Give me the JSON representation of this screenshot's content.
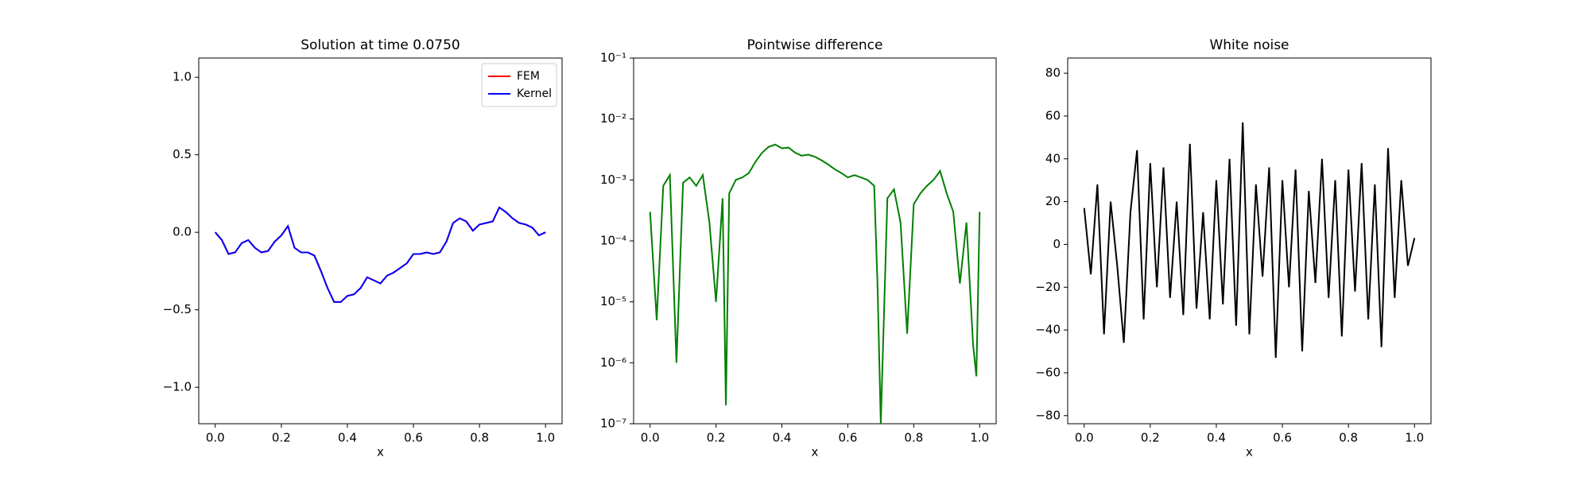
{
  "chart_data": [
    {
      "type": "line",
      "title": "Solution at time 0.0750",
      "xlabel": "x",
      "x": [
        0,
        0.02,
        0.04,
        0.06,
        0.08,
        0.1,
        0.12,
        0.14,
        0.16,
        0.18,
        0.2,
        0.22,
        0.24,
        0.26,
        0.28,
        0.3,
        0.32,
        0.34,
        0.36,
        0.38,
        0.4,
        0.42,
        0.44,
        0.46,
        0.48,
        0.5,
        0.52,
        0.54,
        0.56,
        0.58,
        0.6,
        0.62,
        0.64,
        0.66,
        0.68,
        0.7,
        0.72,
        0.74,
        0.76,
        0.78,
        0.8,
        0.82,
        0.84,
        0.86,
        0.88,
        0.9,
        0.92,
        0.94,
        0.96,
        0.98,
        1
      ],
      "series": [
        {
          "name": "FEM",
          "color": "#ff0000",
          "values": [
            0,
            -0.05,
            -0.14,
            -0.13,
            -0.07,
            -0.05,
            -0.1,
            -0.13,
            -0.12,
            -0.06,
            -0.02,
            0.04,
            -0.1,
            -0.13,
            -0.13,
            -0.15,
            -0.25,
            -0.36,
            -0.45,
            -0.45,
            -0.41,
            -0.4,
            -0.36,
            -0.29,
            -0.31,
            -0.33,
            -0.28,
            -0.26,
            -0.23,
            -0.2,
            -0.14,
            -0.14,
            -0.13,
            -0.14,
            -0.13,
            -0.06,
            0.06,
            0.09,
            0.07,
            0.01,
            0.05,
            0.06,
            0.07,
            0.16,
            0.13,
            0.09,
            0.06,
            0.05,
            0.03,
            -0.02,
            0
          ]
        },
        {
          "name": "Kernel",
          "color": "#0000ff",
          "values": [
            0,
            -0.05,
            -0.14,
            -0.13,
            -0.07,
            -0.05,
            -0.1,
            -0.13,
            -0.12,
            -0.06,
            -0.02,
            0.04,
            -0.1,
            -0.13,
            -0.13,
            -0.15,
            -0.25,
            -0.36,
            -0.45,
            -0.45,
            -0.41,
            -0.4,
            -0.36,
            -0.29,
            -0.31,
            -0.33,
            -0.28,
            -0.26,
            -0.23,
            -0.2,
            -0.14,
            -0.14,
            -0.13,
            -0.14,
            -0.13,
            -0.06,
            0.06,
            0.09,
            0.07,
            0.01,
            0.05,
            0.06,
            0.07,
            0.16,
            0.13,
            0.09,
            0.06,
            0.05,
            0.03,
            -0.02,
            0
          ]
        }
      ],
      "xlim": [
        -0.05,
        1.05
      ],
      "xticks": [
        {
          "value": 0,
          "label": "0.0"
        },
        0.2,
        0.4,
        0.6,
        0.8,
        {
          "value": 1,
          "label": "1.0"
        }
      ],
      "ylim": [
        -1.235,
        1.124
      ],
      "yticks": [
        {
          "value": -1,
          "label": "−1.0"
        },
        {
          "value": -0.5,
          "label": "−0.5"
        },
        {
          "value": 0,
          "label": "0.0"
        },
        0.5,
        {
          "value": 1,
          "label": "1.0"
        }
      ],
      "legend": "upper right",
      "grid": false
    },
    {
      "type": "line",
      "title": "Pointwise difference",
      "xlabel": "x",
      "x": [
        0,
        0.02,
        0.04,
        0.06,
        0.08,
        0.1,
        0.12,
        0.14,
        0.16,
        0.18,
        0.2,
        0.22,
        0.23,
        0.24,
        0.26,
        0.28,
        0.3,
        0.32,
        0.34,
        0.36,
        0.38,
        0.4,
        0.42,
        0.44,
        0.46,
        0.48,
        0.5,
        0.52,
        0.54,
        0.56,
        0.58,
        0.6,
        0.62,
        0.64,
        0.66,
        0.68,
        0.69,
        0.7,
        0.72,
        0.74,
        0.76,
        0.78,
        0.8,
        0.82,
        0.84,
        0.86,
        0.88,
        0.9,
        0.92,
        0.94,
        0.96,
        0.98,
        0.99,
        1
      ],
      "series": [
        {
          "color": "#008000",
          "values": [
            0.0003,
            5e-06,
            0.0008,
            0.0012,
            1e-06,
            0.0009,
            0.0011,
            0.0008,
            0.0012,
            0.0002,
            1e-05,
            0.0005,
            2e-07,
            0.0006,
            0.001,
            0.0011,
            0.0013,
            0.002,
            0.0028,
            0.0035,
            0.0038,
            0.0033,
            0.0034,
            0.0028,
            0.0025,
            0.0026,
            0.0024,
            0.0021,
            0.0018,
            0.0015,
            0.0013,
            0.0011,
            0.0012,
            0.0011,
            0.001,
            0.0008,
            2e-05,
            1e-07,
            0.0005,
            0.0007,
            0.0002,
            3e-06,
            0.0004,
            0.0006,
            0.0008,
            0.001,
            0.0014,
            0.0006,
            0.0003,
            2e-05,
            0.0002,
            2e-06,
            6e-07,
            0.0003
          ]
        }
      ],
      "xlim": [
        -0.05,
        1.05
      ],
      "xticks": [
        {
          "value": 0,
          "label": "0.0"
        },
        0.2,
        0.4,
        0.6,
        0.8,
        {
          "value": 1,
          "label": "1.0"
        }
      ],
      "ylim": [
        1e-07,
        0.1
      ],
      "log_y": true,
      "yticks": [
        {
          "value": 1e-07,
          "label": "10⁻⁷"
        },
        {
          "value": 1e-06,
          "label": "10⁻⁶"
        },
        {
          "value": 1e-05,
          "label": "10⁻⁵"
        },
        {
          "value": 0.0001,
          "label": "10⁻⁴"
        },
        {
          "value": 0.001,
          "label": "10⁻³"
        },
        {
          "value": 0.01,
          "label": "10⁻²"
        },
        {
          "value": 0.1,
          "label": "10⁻¹"
        }
      ],
      "grid": false
    },
    {
      "type": "line",
      "title": "White noise",
      "xlabel": "x",
      "x": [
        0,
        0.02,
        0.04,
        0.06,
        0.08,
        0.1,
        0.12,
        0.14,
        0.16,
        0.18,
        0.2,
        0.22,
        0.24,
        0.26,
        0.28,
        0.3,
        0.32,
        0.34,
        0.36,
        0.38,
        0.4,
        0.42,
        0.44,
        0.46,
        0.48,
        0.5,
        0.52,
        0.54,
        0.56,
        0.58,
        0.6,
        0.62,
        0.64,
        0.66,
        0.68,
        0.7,
        0.72,
        0.74,
        0.76,
        0.78,
        0.8,
        0.82,
        0.84,
        0.86,
        0.88,
        0.9,
        0.92,
        0.94,
        0.96,
        0.98,
        1
      ],
      "series": [
        {
          "color": "#000000",
          "values": [
            17,
            -14,
            28,
            -42,
            20,
            -10,
            -46,
            15,
            44,
            -35,
            38,
            -20,
            36,
            -25,
            20,
            -33,
            47,
            -30,
            15,
            -35,
            30,
            -28,
            40,
            -38,
            57,
            -42,
            28,
            -15,
            36,
            -53,
            30,
            -20,
            35,
            -50,
            25,
            -18,
            40,
            -25,
            30,
            -43,
            35,
            -22,
            38,
            -35,
            28,
            -48,
            45,
            -25,
            30,
            -10,
            3
          ]
        }
      ],
      "xlim": [
        -0.05,
        1.05
      ],
      "xticks": [
        {
          "value": 0,
          "label": "0.0"
        },
        0.2,
        0.4,
        0.6,
        0.8,
        {
          "value": 1,
          "label": "1.0"
        }
      ],
      "ylim": [
        -83.8,
        87.1
      ],
      "yticks": [
        {
          "value": -80,
          "label": "−80"
        },
        {
          "value": -60,
          "label": "−60"
        },
        {
          "value": -40,
          "label": "−40"
        },
        {
          "value": -20,
          "label": "−20"
        },
        0,
        20,
        40,
        60,
        80
      ],
      "grid": false
    }
  ]
}
